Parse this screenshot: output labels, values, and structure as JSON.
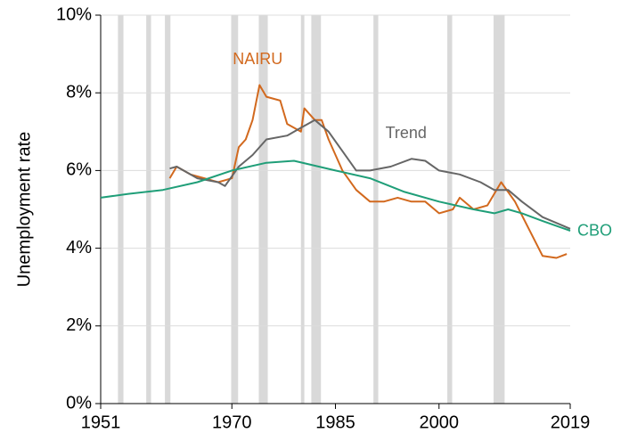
{
  "chart_data": {
    "type": "line",
    "ylabel": "Unemployment rate",
    "xlim": [
      1951,
      2019
    ],
    "xticks": [
      1951,
      1970,
      1985,
      2000,
      2019
    ],
    "ylim": [
      0,
      10
    ],
    "yticks": [
      {
        "value": 0,
        "label": "0%"
      },
      {
        "value": 2,
        "label": "2%"
      },
      {
        "value": 4,
        "label": "4%"
      },
      {
        "value": 6,
        "label": "6%"
      },
      {
        "value": 8,
        "label": "8%"
      },
      {
        "value": 10,
        "label": "10%"
      }
    ],
    "grid": true,
    "recessions": [
      [
        1953.5,
        1954.3
      ],
      [
        1957.6,
        1958.3
      ],
      [
        1960.3,
        1961.1
      ],
      [
        1969.9,
        1970.9
      ],
      [
        1973.9,
        1975.2
      ],
      [
        1980.0,
        1980.5
      ],
      [
        1981.5,
        1982.9
      ],
      [
        1990.5,
        1991.2
      ],
      [
        2001.2,
        2001.9
      ],
      [
        2007.9,
        2009.5
      ]
    ],
    "recession_color": "#d9d9d9",
    "series": [
      {
        "name": "NAIRU",
        "color": "#d2691e",
        "x": [
          1961,
          1962,
          1964,
          1966,
          1968,
          1970,
          1971,
          1972,
          1973,
          1974,
          1975,
          1977,
          1978,
          1980,
          1980.5,
          1982,
          1983,
          1984,
          1986,
          1988,
          1990,
          1992,
          1994,
          1996,
          1998,
          2000,
          2002,
          2003,
          2005,
          2007,
          2009,
          2011,
          2013,
          2015,
          2017,
          2018.5
        ],
        "values": [
          5.8,
          6.1,
          5.9,
          5.8,
          5.7,
          5.8,
          6.6,
          6.8,
          7.3,
          8.2,
          7.9,
          7.8,
          7.2,
          7.0,
          7.6,
          7.3,
          7.3,
          6.8,
          6.0,
          5.5,
          5.2,
          5.2,
          5.3,
          5.2,
          5.2,
          4.9,
          5.0,
          5.3,
          5.0,
          5.1,
          5.7,
          5.2,
          4.5,
          3.8,
          3.75,
          3.85
        ]
      },
      {
        "name": "Trend",
        "color": "#666666",
        "x": [
          1961,
          1962,
          1965,
          1968,
          1969,
          1971,
          1973,
          1975,
          1978,
          1980,
          1981,
          1982,
          1984,
          1986,
          1988,
          1990,
          1993,
          1996,
          1998,
          2000,
          2003,
          2006,
          2008,
          2010,
          2012,
          2015,
          2019
        ],
        "values": [
          6.05,
          6.1,
          5.8,
          5.7,
          5.6,
          6.1,
          6.4,
          6.8,
          6.9,
          7.1,
          7.2,
          7.3,
          7.0,
          6.5,
          6.0,
          6.0,
          6.1,
          6.3,
          6.25,
          6.0,
          5.9,
          5.7,
          5.5,
          5.5,
          5.2,
          4.8,
          4.5
        ]
      },
      {
        "name": "CBO",
        "color": "#1f9e78",
        "x": [
          1951,
          1955,
          1960,
          1965,
          1970,
          1975,
          1979,
          1985,
          1990,
          1995,
          2000,
          2005,
          2008,
          2010,
          2012,
          2015,
          2019
        ],
        "values": [
          5.3,
          5.4,
          5.5,
          5.7,
          6.0,
          6.2,
          6.25,
          6.0,
          5.8,
          5.45,
          5.2,
          5.0,
          4.9,
          5.0,
          4.9,
          4.7,
          4.45
        ]
      }
    ]
  }
}
